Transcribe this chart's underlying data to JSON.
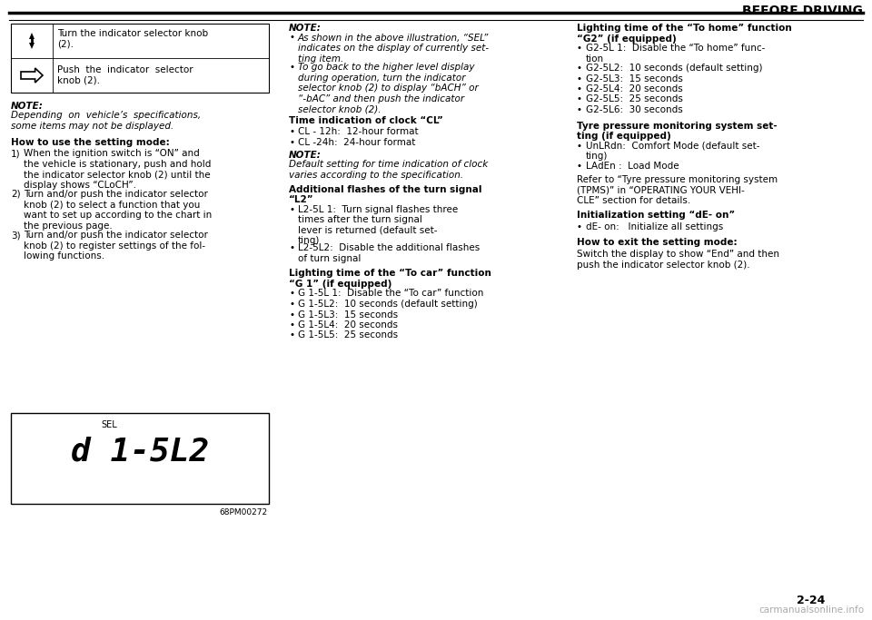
{
  "page_header": "BEFORE DRIVING",
  "page_number": "2-24",
  "watermark": "carmanualsonline.info",
  "col1": {
    "table_rows": [
      {
        "icon": "updown_arrow",
        "text": "Turn the indicator selector knob\n(2)."
      },
      {
        "icon": "right_arrow",
        "text": "Push  the  indicator  selector\nknob (2)."
      }
    ],
    "note_title": "NOTE:",
    "note_body": "Depending  on  vehicle’s  specifications,\nsome items may not be displayed.",
    "section_title": "How to use the setting mode:",
    "steps": [
      "When the ignition switch is “ON” and\nthe vehicle is stationary, push and hold\nthe indicator selector knob (2) until the\ndisplay shows “CLoCH”.",
      "Turn and/or push the indicator selector\nknob (2) to select a function that you\nwant to set up according to the chart in\nthe previous page.",
      "Turn and/or push the indicator selector\nknob (2) to register settings of the fol-\nlowing functions."
    ],
    "display_label": "SEL",
    "display_text": "d 1-5L2",
    "image_ref": "68PM00272"
  },
  "col2": {
    "note_title": "NOTE:",
    "note_bullets": [
      "As shown in the above illustration, “SEL”\nindicates on the display of currently set-\nting item.",
      "To go back to the higher level display\nduring operation, turn the indicator\nselector knob (2) to display “bACH” or\n“-bAC” and then push the indicator\nselector knob (2)."
    ],
    "clock_title": "Time indication of clock “CL”",
    "clock_bullets": [
      "CL - 12h:  12-hour format",
      "CL -24h:  24-hour format"
    ],
    "clock_note_title": "NOTE:",
    "clock_note_body": "Default setting for time indication of clock\nvaries according to the specification.",
    "flash_title": "Additional flashes of the turn signal\n“L2”",
    "flash_bullets": [
      "L2-5L 1:  Turn signal flashes three\ntimes after the turn signal\nlever is returned (default set-\nting)",
      "L2-5L2:  Disable the additional flashes\nof turn signal"
    ],
    "tocar_title": "Lighting time of the “To car” function\n“G 1” (if equipped)",
    "tocar_bullets": [
      "G 1-5L 1:  Disable the “To car” function",
      "G 1-5L2:  10 seconds (default setting)",
      "G 1-5L3:  15 seconds",
      "G 1-5L4:  20 seconds",
      "G 1-5L5:  25 seconds"
    ]
  },
  "col3": {
    "tohome_title": "Lighting time of the “To home” function\n“G2” (if equipped)",
    "tohome_bullets": [
      "G2-5L 1:  Disable the “To home” func-\ntion",
      "G2-5L2:  10 seconds (default setting)",
      "G2-5L3:  15 seconds",
      "G2-5L4:  20 seconds",
      "G2-5L5:  25 seconds",
      "G2-5L6:  30 seconds"
    ],
    "tyre_title": "Tyre pressure monitoring system set-\nting (if equipped)",
    "tyre_bullets": [
      "UnLRdn:  Comfort Mode (default set-\nting)",
      "LAdEn :  Load Mode"
    ],
    "tyre_refer": "Refer to “Tyre pressure monitoring system\n(TPMS)” in “OPERATING YOUR VEHI-\nCLE” section for details.",
    "init_title": "Initialization setting “dE- on”",
    "init_bullets": [
      "dE- on:   Initialize all settings"
    ],
    "exit_title": "How to exit the setting mode:",
    "exit_body": "Switch the display to show “End” and then\npush the indicator selector knob (2)."
  }
}
